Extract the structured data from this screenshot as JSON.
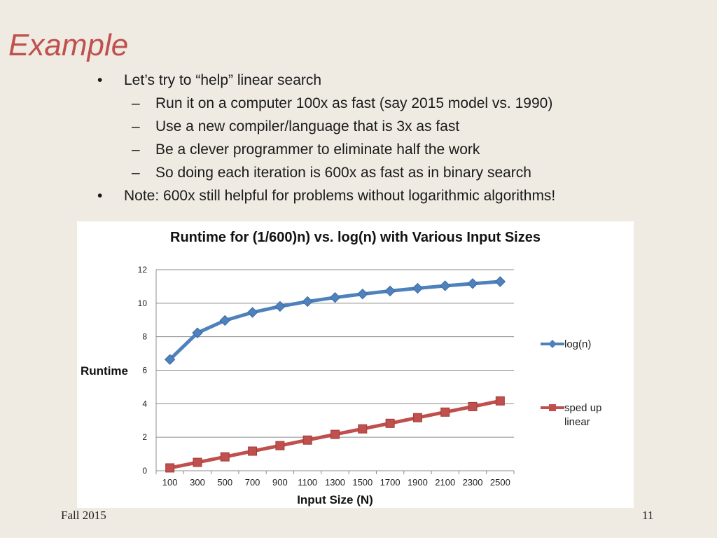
{
  "slide": {
    "title": "Example",
    "bullet_marker": "•",
    "dash_marker": "–",
    "bullets": [
      "Let’s try to “help” linear search",
      "Run it on a computer 100x as fast (say 2015 model vs. 1990)",
      "Use a new compiler/language that is 3x as fast",
      "Be a clever programmer to eliminate half the work",
      "So doing each iteration is 600x as fast as in binary search",
      "Note: 600x still helpful for problems without logarithmic algorithms!"
    ],
    "footer_left": "Fall 2015",
    "page_number": "11"
  },
  "chart_data": {
    "type": "line",
    "title": "Runtime for (1/600)n) vs. log(n) with Various Input Sizes",
    "xlabel": "Input Size (N)",
    "ylabel": "Runtime",
    "categories": [
      "100",
      "300",
      "500",
      "700",
      "900",
      "1100",
      "1300",
      "1500",
      "1700",
      "1900",
      "2100",
      "2300",
      "2500"
    ],
    "ylim": [
      0,
      12
    ],
    "yticks": [
      "0",
      "2",
      "4",
      "6",
      "8",
      "10",
      "12"
    ],
    "grid": true,
    "legend_position": "right",
    "series": [
      {
        "name": "log(n)",
        "color": "#4f81bd",
        "marker": "diamond",
        "values": [
          6.64,
          8.23,
          8.97,
          9.45,
          9.81,
          10.1,
          10.34,
          10.55,
          10.73,
          10.89,
          11.04,
          11.17,
          11.29
        ]
      },
      {
        "name": "sped up linear",
        "legend_lines": [
          "sped up",
          "linear"
        ],
        "color": "#c0504d",
        "marker": "square",
        "values": [
          0.17,
          0.5,
          0.83,
          1.17,
          1.5,
          1.83,
          2.17,
          2.5,
          2.83,
          3.17,
          3.5,
          3.83,
          4.17
        ]
      }
    ]
  }
}
